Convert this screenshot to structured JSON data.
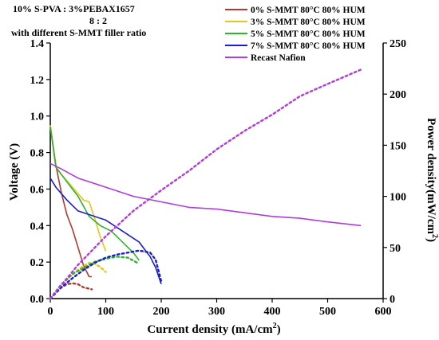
{
  "chart_data": {
    "type": "line",
    "annotation": [
      "10% S-PVA : 3%PEBAX1657",
      "8 : 2",
      "with different S-MMT filler ratio"
    ],
    "xlabel": "Current density (mA/cm",
    "xlabel_sup": "2",
    "xlabel_end": ")",
    "ylabel_left": "Voltage (V)",
    "ylabel_right": "Power density(mW/cm",
    "ylabel_right_sup": "2",
    "ylabel_right_end": ")",
    "xlim": [
      0,
      600
    ],
    "ylim_left": [
      0,
      1.4
    ],
    "ylim_right": [
      0,
      250
    ],
    "x_ticks": [
      0,
      100,
      200,
      300,
      400,
      500,
      600
    ],
    "x_tick_labels": [
      "0",
      "100",
      "200",
      "300",
      "400",
      "500",
      "600"
    ],
    "y_left_ticks": [
      0,
      0.2,
      0.4,
      0.6,
      0.8,
      1.0,
      1.2,
      1.4
    ],
    "y_left_tick_labels": [
      "0.0",
      "0.2",
      "0.4",
      "0.6",
      "0.8",
      "1.0",
      "1.2",
      "1.4"
    ],
    "y_right_ticks": [
      0,
      50,
      100,
      150,
      200,
      250
    ],
    "y_right_tick_labels": [
      "0",
      "50",
      "100",
      "150",
      "200",
      "250"
    ],
    "legend_position": "top-right",
    "series": [
      {
        "name": "0% S-MMT 80°C 80% HUM",
        "color": "#b03a2e",
        "voltage": [
          [
            0,
            0.95
          ],
          [
            10,
            0.73
          ],
          [
            20,
            0.58
          ],
          [
            30,
            0.46
          ],
          [
            40,
            0.38
          ],
          [
            50,
            0.28
          ],
          [
            60,
            0.18
          ],
          [
            70,
            0.12
          ],
          [
            75,
            0.12
          ]
        ],
        "power": [
          [
            0,
            0
          ],
          [
            10,
            7
          ],
          [
            20,
            11
          ],
          [
            30,
            14
          ],
          [
            40,
            15
          ],
          [
            50,
            14
          ],
          [
            60,
            11
          ],
          [
            75,
            9
          ]
        ]
      },
      {
        "name": "3% S-MMT 80°C 80% HUM",
        "color": "#e6c619",
        "voltage": [
          [
            0,
            0.95
          ],
          [
            10,
            0.72
          ],
          [
            20,
            0.68
          ],
          [
            40,
            0.61
          ],
          [
            60,
            0.54
          ],
          [
            70,
            0.53
          ],
          [
            80,
            0.44
          ],
          [
            90,
            0.34
          ],
          [
            95,
            0.3
          ],
          [
            100,
            0.26
          ]
        ],
        "power": [
          [
            0,
            0
          ],
          [
            20,
            13
          ],
          [
            40,
            24
          ],
          [
            60,
            32
          ],
          [
            70,
            35
          ],
          [
            80,
            34
          ],
          [
            90,
            31
          ],
          [
            100,
            26
          ]
        ]
      },
      {
        "name": "5% S-MMT 80°C 80% HUM",
        "color": "#2db52d",
        "voltage": [
          [
            0,
            0.94
          ],
          [
            10,
            0.72
          ],
          [
            30,
            0.64
          ],
          [
            50,
            0.56
          ],
          [
            70,
            0.45
          ],
          [
            90,
            0.4
          ],
          [
            110,
            0.37
          ],
          [
            130,
            0.31
          ],
          [
            150,
            0.25
          ],
          [
            160,
            0.21
          ]
        ],
        "power": [
          [
            0,
            0
          ],
          [
            20,
            14
          ],
          [
            40,
            24
          ],
          [
            60,
            30
          ],
          [
            80,
            36
          ],
          [
            100,
            39
          ],
          [
            120,
            41
          ],
          [
            140,
            40
          ],
          [
            160,
            34
          ]
        ]
      },
      {
        "name": "7% S-MMT 80°C 80% HUM",
        "color": "#1c1cd0",
        "voltage": [
          [
            0,
            0.66
          ],
          [
            10,
            0.61
          ],
          [
            30,
            0.54
          ],
          [
            50,
            0.48
          ],
          [
            70,
            0.46
          ],
          [
            100,
            0.43
          ],
          [
            130,
            0.37
          ],
          [
            160,
            0.31
          ],
          [
            170,
            0.27
          ],
          [
            180,
            0.23
          ],
          [
            190,
            0.17
          ],
          [
            200,
            0.08
          ]
        ],
        "power": [
          [
            0,
            0
          ],
          [
            20,
            11
          ],
          [
            40,
            20
          ],
          [
            60,
            28
          ],
          [
            80,
            35
          ],
          [
            100,
            40
          ],
          [
            120,
            43
          ],
          [
            140,
            45
          ],
          [
            160,
            47
          ],
          [
            180,
            45
          ],
          [
            190,
            38
          ],
          [
            200,
            17
          ]
        ]
      },
      {
        "name": "Recast Nafion",
        "color": "#b13be0",
        "voltage": [
          [
            0,
            0.74
          ],
          [
            20,
            0.71
          ],
          [
            50,
            0.66
          ],
          [
            100,
            0.61
          ],
          [
            150,
            0.56
          ],
          [
            200,
            0.53
          ],
          [
            250,
            0.5
          ],
          [
            300,
            0.49
          ],
          [
            350,
            0.47
          ],
          [
            400,
            0.45
          ],
          [
            450,
            0.44
          ],
          [
            500,
            0.42
          ],
          [
            560,
            0.4
          ]
        ],
        "power": [
          [
            0,
            0
          ],
          [
            50,
            33
          ],
          [
            100,
            61
          ],
          [
            150,
            86
          ],
          [
            200,
            106
          ],
          [
            250,
            125
          ],
          [
            300,
            146
          ],
          [
            350,
            164
          ],
          [
            400,
            180
          ],
          [
            450,
            198
          ],
          [
            500,
            210
          ],
          [
            560,
            224
          ]
        ]
      }
    ]
  }
}
